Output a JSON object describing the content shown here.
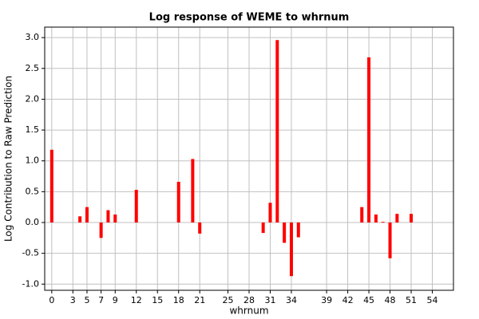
{
  "chart_data": {
    "type": "bar",
    "title": "Log response of WEME to whrnum",
    "x_label": "whrnum",
    "y_label": "Log Contribution to Raw Prediction",
    "x": [
      0,
      4,
      5,
      7,
      8,
      9,
      12,
      18,
      20,
      21,
      30,
      31,
      32,
      33,
      34,
      35,
      44,
      45,
      46,
      47,
      48,
      49,
      51
    ],
    "values": [
      1.18,
      0.1,
      0.25,
      -0.25,
      0.2,
      0.13,
      0.53,
      0.66,
      1.03,
      -0.18,
      -0.17,
      0.32,
      2.96,
      -0.33,
      -0.87,
      -0.24,
      0.25,
      2.68,
      0.13,
      0.01,
      -0.58,
      0.14,
      0.14
    ],
    "color": "#ff0000",
    "xlim": [
      -1,
      57
    ],
    "xticks": [
      0,
      3,
      5,
      7,
      9,
      12,
      15,
      18,
      21,
      25,
      28,
      31,
      34,
      39,
      42,
      45,
      48,
      51,
      54
    ],
    "ylim": [
      -1.1,
      3.17
    ],
    "yticks": [
      {
        "value": -1,
        "label": "-1.0"
      },
      {
        "value": -0.5,
        "label": "-0.5"
      },
      {
        "value": 0,
        "label": "0.0"
      },
      {
        "value": 0.5,
        "label": "0.5"
      },
      {
        "value": 1,
        "label": "1.0"
      },
      {
        "value": 1.5,
        "label": "1.5"
      },
      {
        "value": 2,
        "label": "2.0"
      },
      {
        "value": 2.5,
        "label": "2.5"
      },
      {
        "value": 3,
        "label": "3.0"
      }
    ],
    "grid": true
  }
}
